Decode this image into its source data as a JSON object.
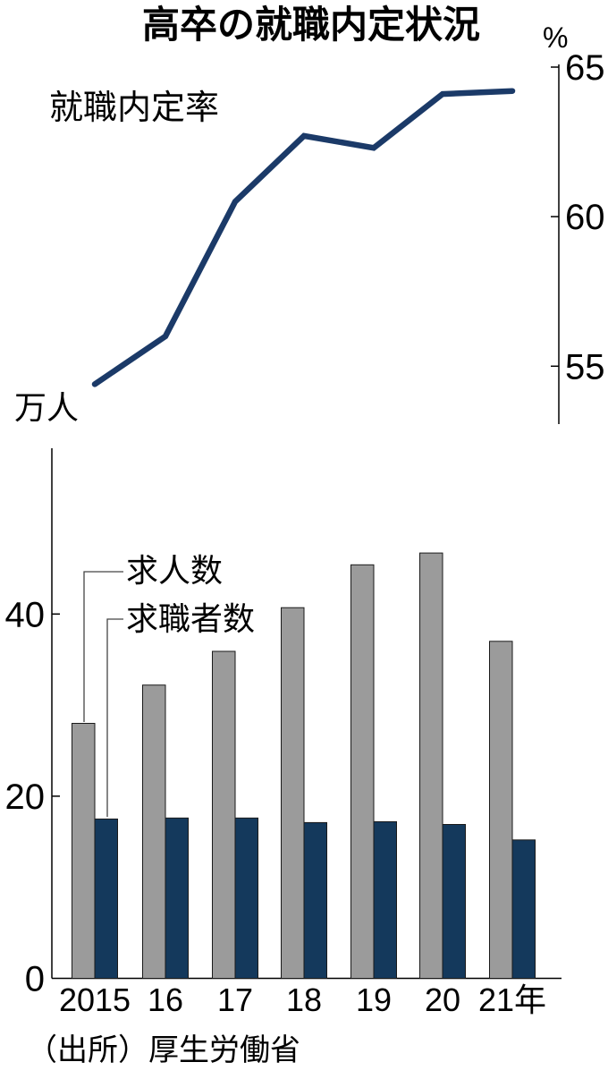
{
  "title": "高卒の就職内定状況",
  "source": "（出所）厚生労働省",
  "chart_data": [
    {
      "type": "line",
      "label": "就職内定率",
      "unit": "%",
      "x": [
        "2015",
        "16",
        "17",
        "18",
        "19",
        "20",
        "21年"
      ],
      "values": [
        54.4,
        56.0,
        60.5,
        62.7,
        62.3,
        64.1,
        64.2
      ],
      "yticks": [
        65,
        60,
        55
      ],
      "ylim": [
        53.3,
        65.2
      ],
      "axis_side": "right",
      "line_color": "#1b3a68",
      "legend_position": "top-left-inline"
    },
    {
      "type": "bar",
      "unit": "万人",
      "categories": [
        "2015",
        "16",
        "17",
        "18",
        "19",
        "20",
        "21年"
      ],
      "series": [
        {
          "name": "求人数",
          "color": "#9b9b9b",
          "values": [
            28.0,
            32.2,
            35.9,
            40.7,
            45.4,
            46.7,
            37.0
          ]
        },
        {
          "name": "求職者数",
          "color": "#14395c",
          "values": [
            17.5,
            17.6,
            17.6,
            17.1,
            17.2,
            16.9,
            15.2
          ]
        }
      ],
      "yticks": [
        40,
        20,
        0
      ],
      "ylim": [
        0,
        58
      ],
      "axis_side": "left",
      "grid": "off",
      "legend_position": "callout-lines-to-first-bars"
    }
  ]
}
